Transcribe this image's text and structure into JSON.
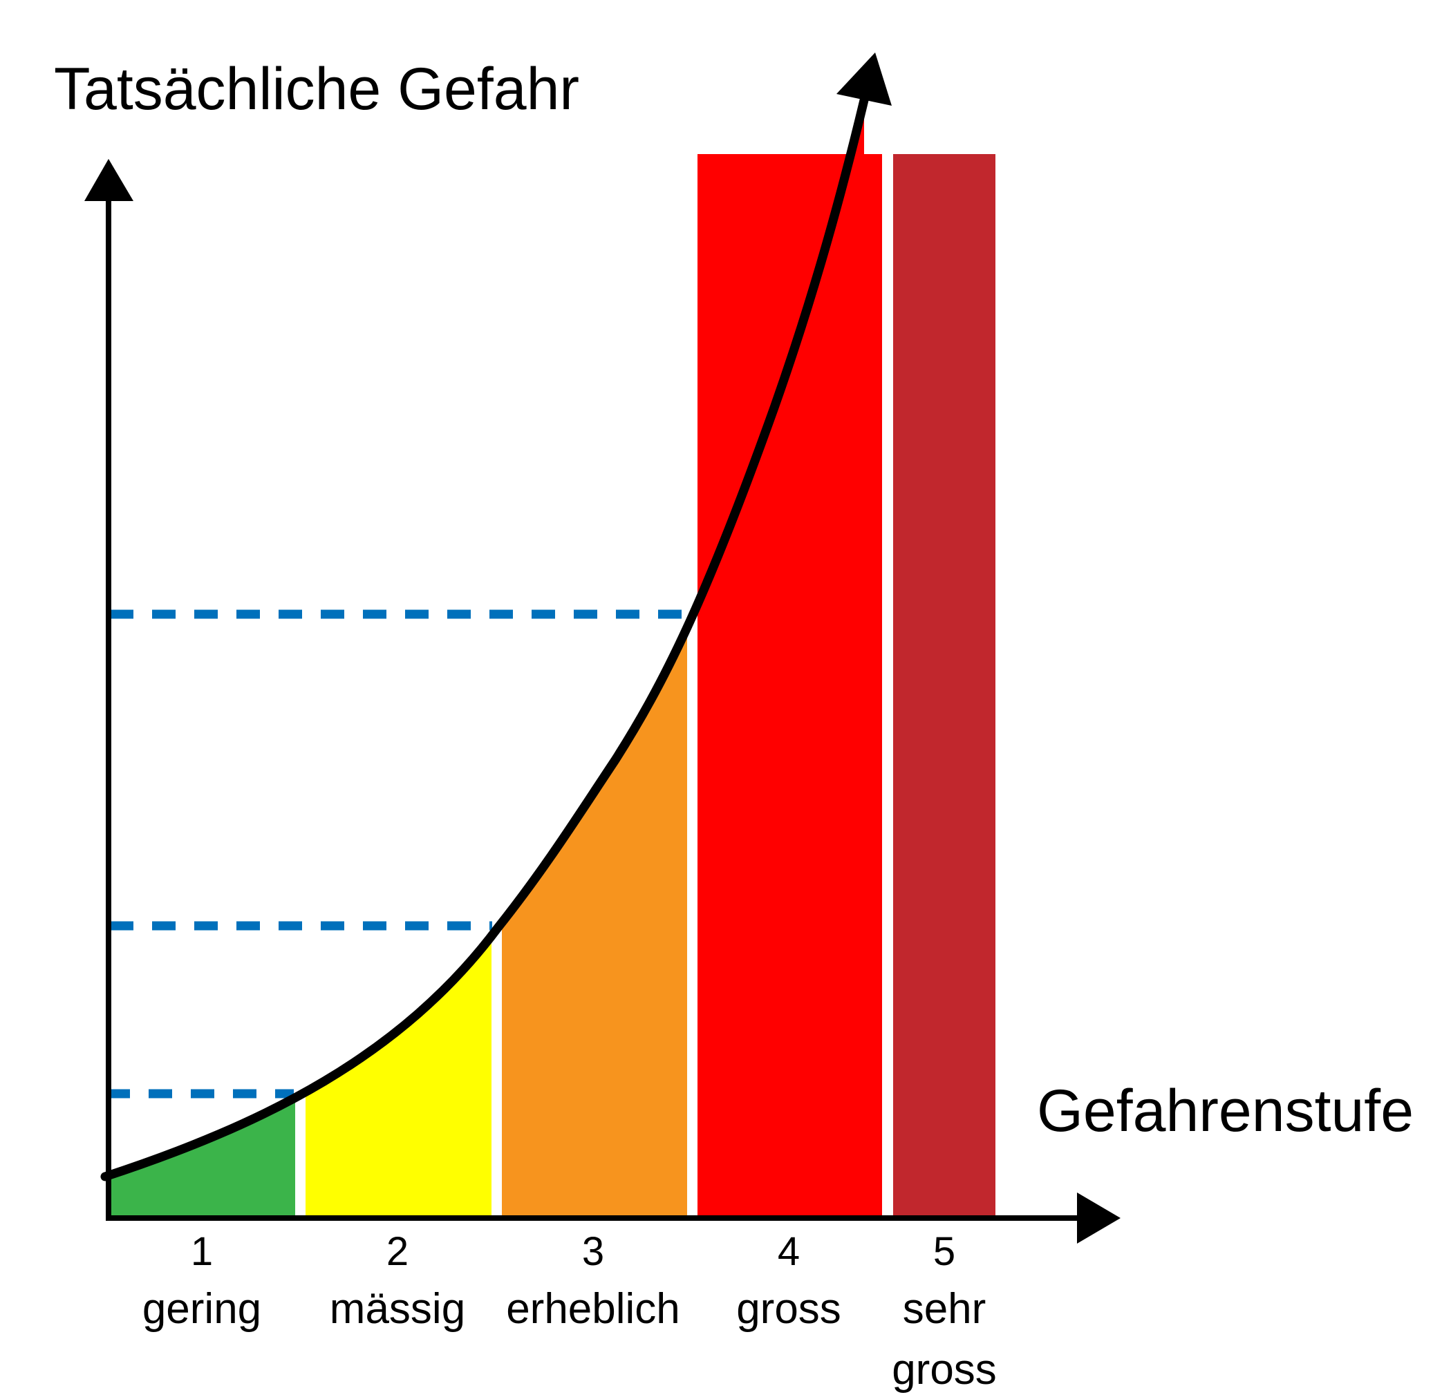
{
  "diagram": {
    "y_axis_title": "Tatsächliche Gefahr",
    "x_axis_title": "Gefahrenstufe",
    "levels": [
      {
        "number": "1",
        "name": "gering",
        "color": "#3bb44a"
      },
      {
        "number": "2",
        "name": "mässig",
        "color": "#ffff00"
      },
      {
        "number": "3",
        "name": "erheblich",
        "color": "#f7941e"
      },
      {
        "number": "4",
        "name": "gross",
        "color": "#ff0000"
      },
      {
        "number": "5",
        "name": "sehr",
        "name_line2": "gross",
        "color": "#c1272d"
      }
    ],
    "curve_color": "#000000",
    "guide_line_color": "#0070bb",
    "guide_line_style": "dashed"
  }
}
